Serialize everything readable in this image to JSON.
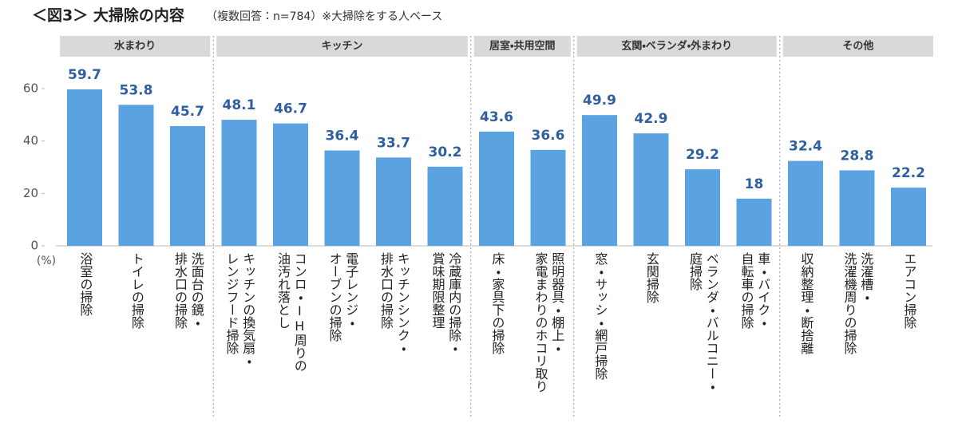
{
  "chart_data": {
    "type": "bar",
    "title": "＜図3＞ 大掃除の内容",
    "subtitle": "（複数回答：n=784）※大掃除をする人ベース",
    "y_unit": "(%)",
    "color": "#5ba3e0",
    "ylim": [
      0,
      60
    ],
    "yticks": [
      0,
      20,
      40,
      60
    ],
    "groups": [
      {
        "name": "水まわり",
        "categories": [
          "浴室の掃除",
          "トイレの掃除",
          "洗面台の鏡・\n排水口の掃除"
        ],
        "values": [
          59.7,
          53.8,
          45.7
        ]
      },
      {
        "name": "キッチン",
        "categories": [
          "キッチンの換気扇・\nレンジフード掃除",
          "コンロ・IH周りの\n油汚れ落とし",
          "電子レンジ・\nオーブンの掃除",
          "キッチンシンク・\n排水口の掃除",
          "冷蔵庫内の掃除・\n賞味期限整理"
        ],
        "values": [
          48.1,
          46.7,
          36.4,
          33.7,
          30.2
        ]
      },
      {
        "name": "居室・共用空間",
        "categories": [
          "床・家具下の掃除",
          "照明器具・棚上・\n家電まわりのホコリ取り"
        ],
        "values": [
          43.6,
          36.6
        ]
      },
      {
        "name": "玄関・ベランダ・外まわり",
        "categories": [
          "窓・サッシ・網戸掃除",
          "玄関掃除",
          "ベランダ・バルコニー・\n庭掃除",
          "車・バイク・\n自転車の掃除"
        ],
        "values": [
          49.9,
          42.9,
          29.2,
          18.0
        ]
      },
      {
        "name": "その他",
        "categories": [
          "収納整理・断捨離",
          "洗濯槽・\n洗濯機周りの掃除",
          "エアコン掃除"
        ],
        "values": [
          32.4,
          28.8,
          22.2
        ]
      }
    ]
  }
}
